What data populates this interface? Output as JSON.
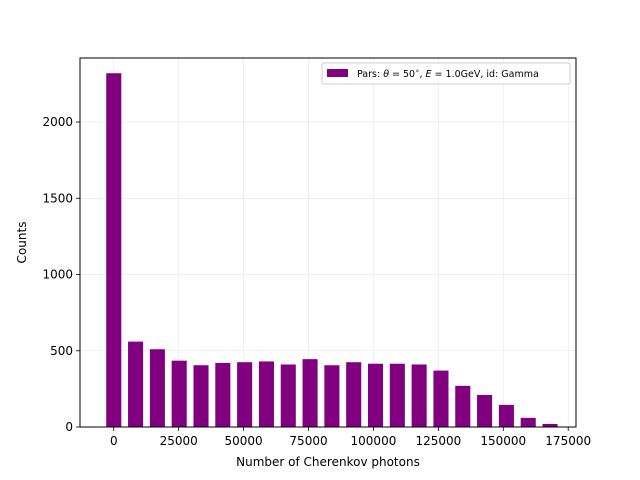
{
  "chart_data": {
    "type": "bar",
    "xlabel": "Number of Cherenkov photons",
    "ylabel": "Counts",
    "xlim": [
      -13000,
      178000
    ],
    "ylim": [
      0,
      2420
    ],
    "x_ticks": [
      0,
      25000,
      50000,
      75000,
      100000,
      125000,
      150000,
      175000
    ],
    "x_tick_labels": [
      "0",
      "25000",
      "50000",
      "75000",
      "100000",
      "125000",
      "150000",
      "175000"
    ],
    "y_ticks": [
      0,
      500,
      1000,
      1500,
      2000
    ],
    "y_tick_labels": [
      "0",
      "500",
      "1000",
      "1500",
      "2000"
    ],
    "bar_width": 5800,
    "grid": true,
    "legend_position": "upper right",
    "series": [
      {
        "name": "Pars: θ = 50°, E = 1.0GeV, id: Gamma",
        "legend_html": "Pars: <tspan font-style='italic'>θ</tspan> = 50<tspan baseline-shift='super' font-size='7'>∘</tspan>, <tspan font-style='italic'>E</tspan> = 1.0GeV, id: Gamma",
        "color": "#800080",
        "x": [
          0,
          8400,
          16800,
          25200,
          33600,
          42000,
          50400,
          58800,
          67200,
          75600,
          84000,
          92400,
          100800,
          109200,
          117600,
          126000,
          134400,
          142800,
          151200,
          159600,
          168000
        ],
        "values": [
          2320,
          560,
          510,
          435,
          405,
          420,
          425,
          430,
          410,
          445,
          405,
          425,
          415,
          415,
          410,
          370,
          270,
          210,
          145,
          60,
          20
        ]
      }
    ]
  }
}
